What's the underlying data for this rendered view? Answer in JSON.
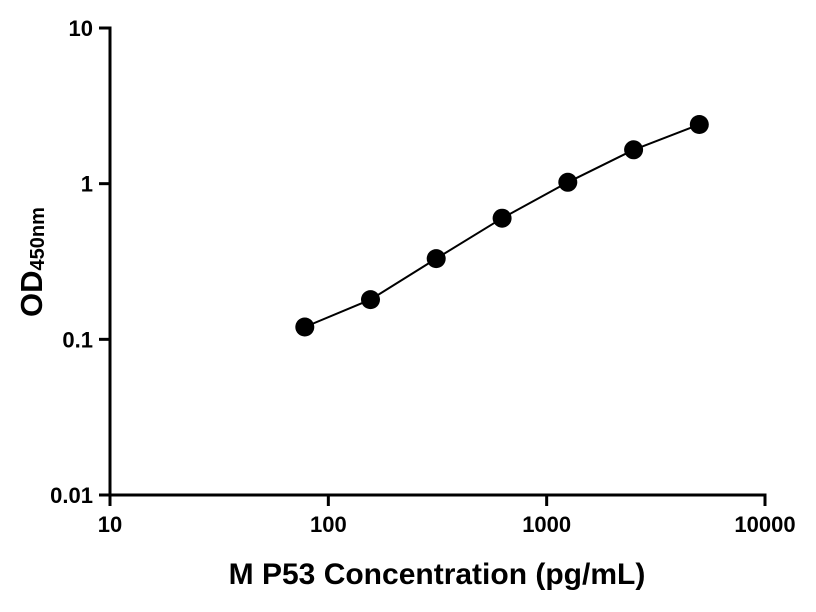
{
  "chart_data": {
    "type": "scatter",
    "title": "",
    "xlabel": "M P53 Concentration (pg/mL)",
    "ylabel_main": "OD",
    "ylabel_sub": "450nm",
    "xscale": "log",
    "yscale": "log",
    "xlim": [
      10,
      10000
    ],
    "ylim": [
      0.01,
      10
    ],
    "x_ticks": [
      10,
      100,
      1000,
      10000
    ],
    "x_tick_labels": [
      "10",
      "100",
      "1000",
      "10000"
    ],
    "y_ticks": [
      0.01,
      0.1,
      1,
      10
    ],
    "y_tick_labels": [
      "0.01",
      "0.1",
      "1",
      "10"
    ],
    "x": [
      78,
      156,
      312,
      625,
      1250,
      2500,
      5000
    ],
    "y": [
      0.12,
      0.18,
      0.33,
      0.6,
      1.02,
      1.65,
      2.4
    ],
    "grid": false,
    "legend": "none",
    "marker_color": "#000000",
    "line_color": "#000000",
    "axis_color": "#000000",
    "background_color": "#ffffff"
  }
}
